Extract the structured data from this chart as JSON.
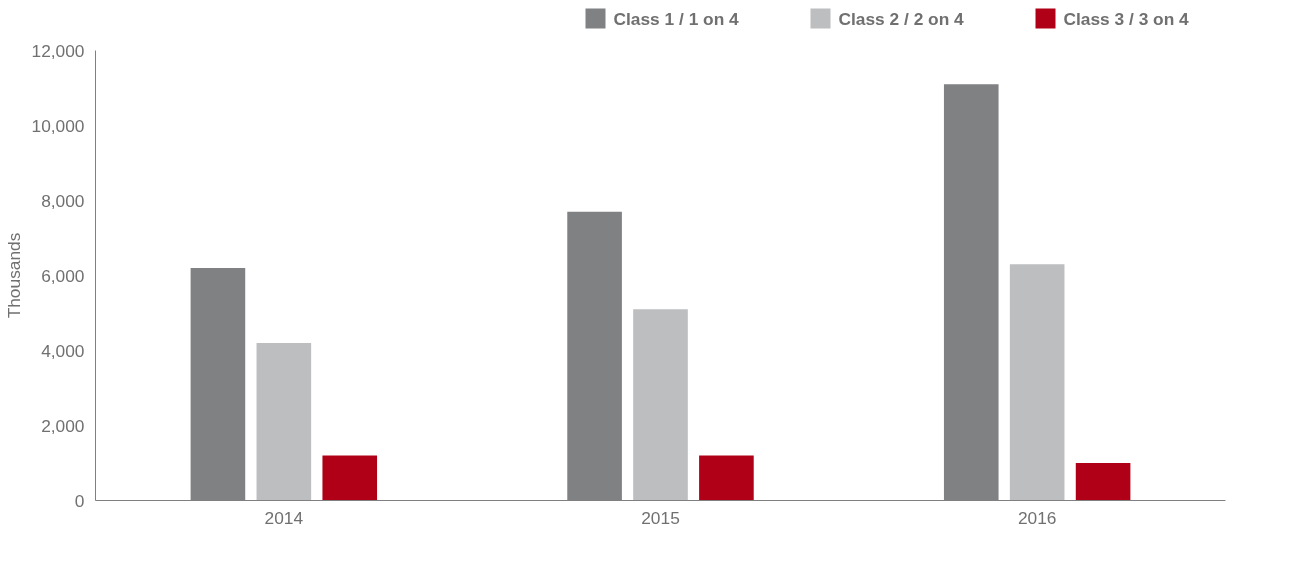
{
  "chart_data": {
    "type": "bar",
    "ylabel": "Thousands",
    "categories": [
      "2014",
      "2015",
      "2016"
    ],
    "series": [
      {
        "name": "Class 1 / 1 on 4",
        "color": "#808183",
        "values": [
          6200,
          7700,
          11100
        ]
      },
      {
        "name": "Class 2 / 2 on 4",
        "color": "#bdbec0",
        "values": [
          4200,
          5100,
          6300
        ]
      },
      {
        "name": "Class 3 / 3 on 4",
        "color": "#b00017",
        "values": [
          1200,
          1200,
          1000
        ]
      }
    ],
    "ylim": [
      0,
      12000
    ],
    "yticks": [
      {
        "value": 0,
        "label": "0"
      },
      {
        "value": 2000,
        "label": "2,000"
      },
      {
        "value": 4000,
        "label": "4,000"
      },
      {
        "value": 6000,
        "label": "6,000"
      },
      {
        "value": 8000,
        "label": "8,000"
      },
      {
        "value": 10000,
        "label": "10,000"
      },
      {
        "value": 12000,
        "label": "12,000"
      }
    ],
    "grid": false,
    "legend": "top right"
  }
}
